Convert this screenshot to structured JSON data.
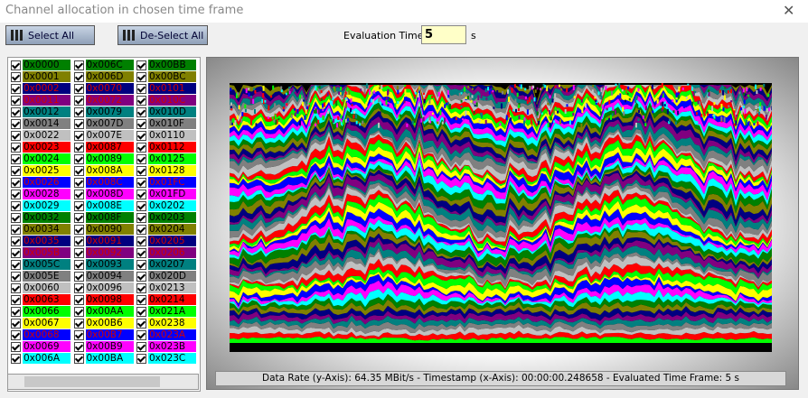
{
  "window": {
    "title": "Channel allocation in chosen time frame",
    "buttons": [
      "Select All",
      "De-Select All"
    ],
    "evaluation_time_label": "Evaluation Time:",
    "evaluation_time_value": "5",
    "evaluation_time_unit": "s"
  },
  "channels": [
    {
      "id": "0x0000",
      "color": "#008000",
      "checked": true
    },
    {
      "id": "0x0001",
      "color": "#808000",
      "checked": true
    },
    {
      "id": "0x0002",
      "color": "#000080",
      "checked": true
    },
    {
      "id": "0x0011",
      "color": "#800080",
      "checked": true
    },
    {
      "id": "0x0012",
      "color": "#008080",
      "checked": true
    },
    {
      "id": "0x0014",
      "color": "#808080",
      "checked": true
    },
    {
      "id": "0x0022",
      "color": "#c0c0c0",
      "checked": true
    },
    {
      "id": "0x0023",
      "color": "#ff0000",
      "checked": true
    },
    {
      "id": "0x0024",
      "color": "#00ff00",
      "checked": true
    },
    {
      "id": "0x0025",
      "color": "#ffff00",
      "checked": true
    },
    {
      "id": "0x0026",
      "color": "#0000ff",
      "checked": true
    },
    {
      "id": "0x0028",
      "color": "#ff00ff",
      "checked": true
    },
    {
      "id": "0x0029",
      "color": "#00ffff",
      "checked": true
    },
    {
      "id": "0x0032",
      "color": "#008000",
      "checked": true
    },
    {
      "id": "0x0034",
      "color": "#808000",
      "checked": true
    },
    {
      "id": "0x0035",
      "color": "#000080",
      "checked": true
    },
    {
      "id": "0x005B",
      "color": "#800080",
      "checked": true
    },
    {
      "id": "0x005C",
      "color": "#008080",
      "checked": true
    },
    {
      "id": "0x005E",
      "color": "#808080",
      "checked": true
    },
    {
      "id": "0x0060",
      "color": "#c0c0c0",
      "checked": true
    },
    {
      "id": "0x0063",
      "color": "#ff0000",
      "checked": true
    },
    {
      "id": "0x0066",
      "color": "#00ff00",
      "checked": true
    },
    {
      "id": "0x0067",
      "color": "#ffff00",
      "checked": true
    },
    {
      "id": "0x0068",
      "color": "#0000ff",
      "checked": true
    },
    {
      "id": "0x0069",
      "color": "#ff00ff",
      "checked": true
    },
    {
      "id": "0x006A",
      "color": "#00ffff",
      "checked": true
    },
    {
      "id": "0x006C",
      "color": "#008000",
      "checked": true
    },
    {
      "id": "0x006D",
      "color": "#808000",
      "checked": true
    },
    {
      "id": "0x0070",
      "color": "#000080",
      "checked": true
    },
    {
      "id": "0x0072",
      "color": "#800080",
      "checked": true
    },
    {
      "id": "0x0079",
      "color": "#008080",
      "checked": true
    },
    {
      "id": "0x007D",
      "color": "#808080",
      "checked": true
    },
    {
      "id": "0x007E",
      "color": "#c0c0c0",
      "checked": true
    },
    {
      "id": "0x0087",
      "color": "#ff0000",
      "checked": true
    },
    {
      "id": "0x0089",
      "color": "#00ff00",
      "checked": true
    },
    {
      "id": "0x008A",
      "color": "#ffff00",
      "checked": true
    },
    {
      "id": "0x008C",
      "color": "#0000ff",
      "checked": true
    },
    {
      "id": "0x008D",
      "color": "#ff00ff",
      "checked": true
    },
    {
      "id": "0x008E",
      "color": "#00ffff",
      "checked": true
    },
    {
      "id": "0x008F",
      "color": "#008000",
      "checked": true
    },
    {
      "id": "0x0090",
      "color": "#808000",
      "checked": true
    },
    {
      "id": "0x0091",
      "color": "#000080",
      "checked": true
    },
    {
      "id": "0x0092",
      "color": "#800080",
      "checked": true
    },
    {
      "id": "0x0093",
      "color": "#008080",
      "checked": true
    },
    {
      "id": "0x0094",
      "color": "#808080",
      "checked": true
    },
    {
      "id": "0x0096",
      "color": "#c0c0c0",
      "checked": true
    },
    {
      "id": "0x0098",
      "color": "#ff0000",
      "checked": true
    },
    {
      "id": "0x00AA",
      "color": "#00ff00",
      "checked": true
    },
    {
      "id": "0x00B6",
      "color": "#ffff00",
      "checked": true
    },
    {
      "id": "0x00B7",
      "color": "#0000ff",
      "checked": true
    },
    {
      "id": "0x00B9",
      "color": "#ff00ff",
      "checked": true
    },
    {
      "id": "0x00BA",
      "color": "#00ffff",
      "checked": true
    },
    {
      "id": "0x00BB",
      "color": "#008000",
      "checked": true
    },
    {
      "id": "0x00BC",
      "color": "#808000",
      "checked": true
    },
    {
      "id": "0x0101",
      "color": "#000080",
      "checked": true
    },
    {
      "id": "0x010C",
      "color": "#800080",
      "checked": true
    },
    {
      "id": "0x010D",
      "color": "#008080",
      "checked": true
    },
    {
      "id": "0x010F",
      "color": "#808080",
      "checked": true
    },
    {
      "id": "0x0110",
      "color": "#c0c0c0",
      "checked": true
    },
    {
      "id": "0x0112",
      "color": "#ff0000",
      "checked": true
    },
    {
      "id": "0x0125",
      "color": "#00ff00",
      "checked": true
    },
    {
      "id": "0x0128",
      "color": "#ffff00",
      "checked": true
    },
    {
      "id": "0x01FC",
      "color": "#0000ff",
      "checked": true
    },
    {
      "id": "0x01FD",
      "color": "#ff00ff",
      "checked": true
    },
    {
      "id": "0x0202",
      "color": "#00ffff",
      "checked": true
    },
    {
      "id": "0x0203",
      "color": "#008000",
      "checked": true
    },
    {
      "id": "0x0204",
      "color": "#808000",
      "checked": true
    },
    {
      "id": "0x0205",
      "color": "#000080",
      "checked": true
    },
    {
      "id": "0x0206",
      "color": "#800080",
      "checked": true
    },
    {
      "id": "0x0207",
      "color": "#008080",
      "checked": true
    },
    {
      "id": "0x020D",
      "color": "#808080",
      "checked": true
    },
    {
      "id": "0x0213",
      "color": "#c0c0c0",
      "checked": true
    },
    {
      "id": "0x0214",
      "color": "#ff0000",
      "checked": true
    },
    {
      "id": "0x021A",
      "color": "#00ff00",
      "checked": true
    },
    {
      "id": "0x0238",
      "color": "#ffff00",
      "checked": true
    },
    {
      "id": "0x023A",
      "color": "#0000ff",
      "checked": true
    },
    {
      "id": "0x023B",
      "color": "#ff00ff",
      "checked": true
    },
    {
      "id": "0x023C",
      "color": "#00ffff",
      "checked": true
    }
  ],
  "status": "Data Rate (y-Axis): 64.35 MBit/s - Timestamp (x-Axis): 00:00:00.248658 - Evaluated Time Frame: 5 s"
}
